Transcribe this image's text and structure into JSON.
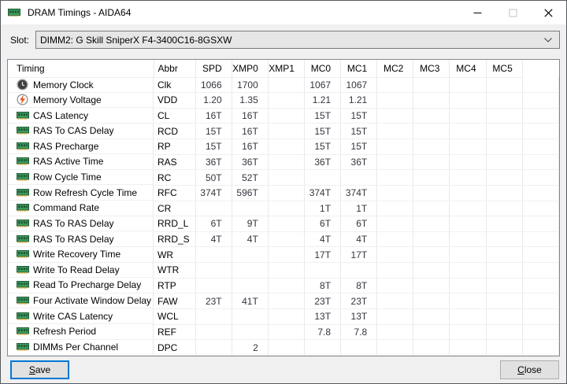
{
  "window": {
    "title": "DRAM Timings - AIDA64",
    "icon": "ram-module-icon",
    "controls": [
      {
        "name": "minimize",
        "enabled": true
      },
      {
        "name": "maximize",
        "enabled": false
      },
      {
        "name": "close",
        "enabled": true
      }
    ]
  },
  "slot": {
    "label": "Slot:",
    "value": "DIMM2: G Skill SniperX F4-3400C16-8GSXW"
  },
  "table": {
    "columns": [
      "Timing",
      "Abbr",
      "SPD",
      "XMP0",
      "XMP1",
      "MC0",
      "MC1",
      "MC2",
      "MC3",
      "MC4",
      "MC5"
    ],
    "rows": [
      {
        "icon": "clock",
        "timing": "Memory Clock",
        "values": [
          "Clk",
          "1066",
          "1700",
          "",
          "1067",
          "1067",
          "",
          "",
          "",
          "",
          ""
        ]
      },
      {
        "icon": "voltage",
        "timing": "Memory Voltage",
        "values": [
          "VDD",
          "1.20",
          "1.35",
          "",
          "1.21",
          "1.21",
          "",
          "",
          "",
          "",
          ""
        ]
      },
      {
        "icon": "ram",
        "timing": "CAS Latency",
        "values": [
          "CL",
          "16T",
          "16T",
          "",
          "15T",
          "15T",
          "",
          "",
          "",
          "",
          ""
        ]
      },
      {
        "icon": "ram",
        "timing": "RAS To CAS Delay",
        "values": [
          "RCD",
          "15T",
          "16T",
          "",
          "15T",
          "15T",
          "",
          "",
          "",
          "",
          ""
        ]
      },
      {
        "icon": "ram",
        "timing": "RAS Precharge",
        "values": [
          "RP",
          "15T",
          "16T",
          "",
          "15T",
          "15T",
          "",
          "",
          "",
          "",
          ""
        ]
      },
      {
        "icon": "ram",
        "timing": "RAS Active Time",
        "values": [
          "RAS",
          "36T",
          "36T",
          "",
          "36T",
          "36T",
          "",
          "",
          "",
          "",
          ""
        ]
      },
      {
        "icon": "ram",
        "timing": "Row Cycle Time",
        "values": [
          "RC",
          "50T",
          "52T",
          "",
          "",
          "",
          "",
          "",
          "",
          "",
          ""
        ]
      },
      {
        "icon": "ram",
        "timing": "Row Refresh Cycle Time",
        "values": [
          "RFC",
          "374T",
          "596T",
          "",
          "374T",
          "374T",
          "",
          "",
          "",
          "",
          ""
        ]
      },
      {
        "icon": "ram",
        "timing": "Command Rate",
        "values": [
          "CR",
          "",
          "",
          "",
          "1T",
          "1T",
          "",
          "",
          "",
          "",
          ""
        ]
      },
      {
        "icon": "ram",
        "timing": "RAS To RAS Delay",
        "values": [
          "RRD_L",
          "6T",
          "9T",
          "",
          "6T",
          "6T",
          "",
          "",
          "",
          "",
          ""
        ]
      },
      {
        "icon": "ram",
        "timing": "RAS To RAS Delay",
        "values": [
          "RRD_S",
          "4T",
          "4T",
          "",
          "4T",
          "4T",
          "",
          "",
          "",
          "",
          ""
        ]
      },
      {
        "icon": "ram",
        "timing": "Write Recovery Time",
        "values": [
          "WR",
          "",
          "",
          "",
          "17T",
          "17T",
          "",
          "",
          "",
          "",
          ""
        ]
      },
      {
        "icon": "ram",
        "timing": "Write To Read Delay",
        "values": [
          "WTR",
          "",
          "",
          "",
          "",
          "",
          "",
          "",
          "",
          "",
          ""
        ]
      },
      {
        "icon": "ram",
        "timing": "Read To Precharge Delay",
        "values": [
          "RTP",
          "",
          "",
          "",
          "8T",
          "8T",
          "",
          "",
          "",
          "",
          ""
        ]
      },
      {
        "icon": "ram",
        "timing": "Four Activate Window Delay",
        "values": [
          "FAW",
          "23T",
          "41T",
          "",
          "23T",
          "23T",
          "",
          "",
          "",
          "",
          ""
        ]
      },
      {
        "icon": "ram",
        "timing": "Write CAS Latency",
        "values": [
          "WCL",
          "",
          "",
          "",
          "13T",
          "13T",
          "",
          "",
          "",
          "",
          ""
        ]
      },
      {
        "icon": "ram",
        "timing": "Refresh Period",
        "values": [
          "REF",
          "",
          "",
          "",
          "7.8",
          "7.8",
          "",
          "",
          "",
          "",
          ""
        ]
      },
      {
        "icon": "ram",
        "timing": "DIMMs Per Channel",
        "values": [
          "DPC",
          "",
          "2",
          "",
          "",
          "",
          "",
          "",
          "",
          "",
          ""
        ]
      }
    ]
  },
  "buttons": {
    "save": "Save",
    "close": "Close"
  },
  "colors": {
    "accent": "#0078d7",
    "titlebar_bg": "#ffffff",
    "dialog_bg": "#f0f0f0",
    "value_text": "#34343e",
    "ram_icon_green": "#3f9e5f",
    "voltage_bolt": "#e8551d"
  }
}
